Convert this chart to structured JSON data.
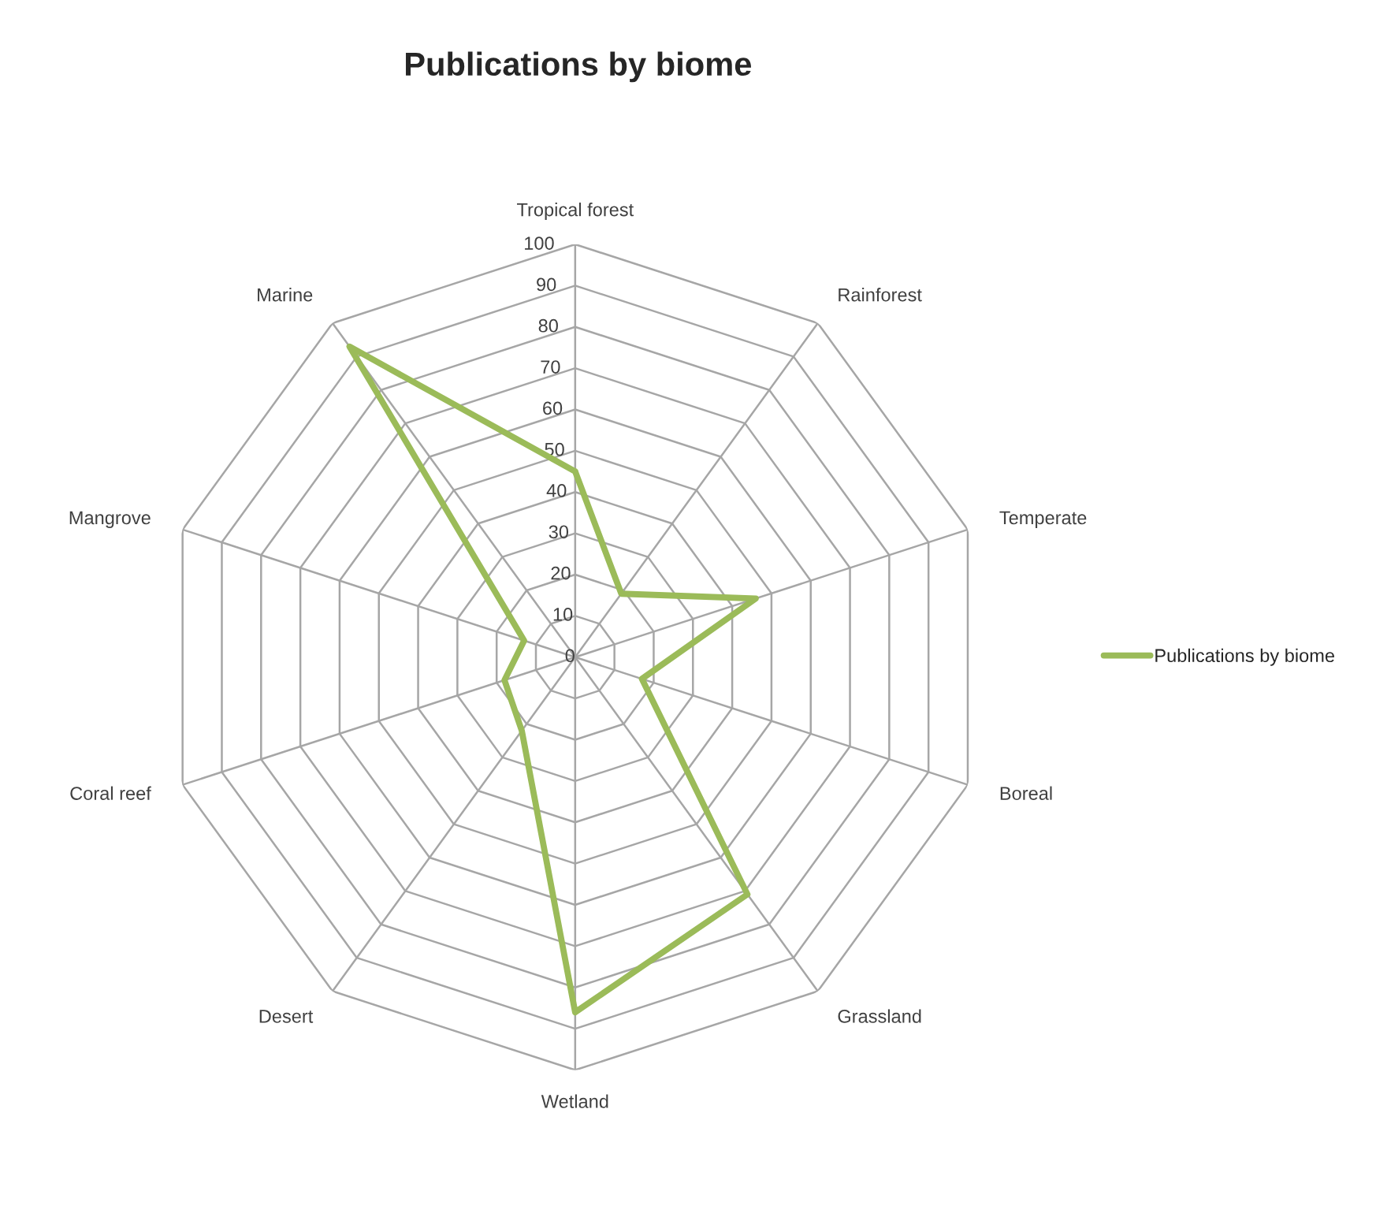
{
  "chart_data": {
    "type": "radar",
    "title": "Publications by biome",
    "categories": [
      "Tropical forest",
      "Rainforest",
      "Temperate",
      "Boreal",
      "Grassland",
      "Wetland",
      "Desert",
      "Coral reef",
      "Mangrove",
      "Marine"
    ],
    "series": [
      {
        "name": "Publications by biome",
        "color": "#9bbb59",
        "values": [
          45,
          19,
          46,
          17,
          71,
          86,
          22,
          18,
          13,
          93
        ]
      }
    ],
    "ylim": [
      0,
      100
    ],
    "yticks": [
      0,
      10,
      20,
      30,
      40,
      50,
      60,
      70,
      80,
      90,
      100
    ],
    "grid": true,
    "legend": "right",
    "marker": "none",
    "line_style": "solid"
  }
}
